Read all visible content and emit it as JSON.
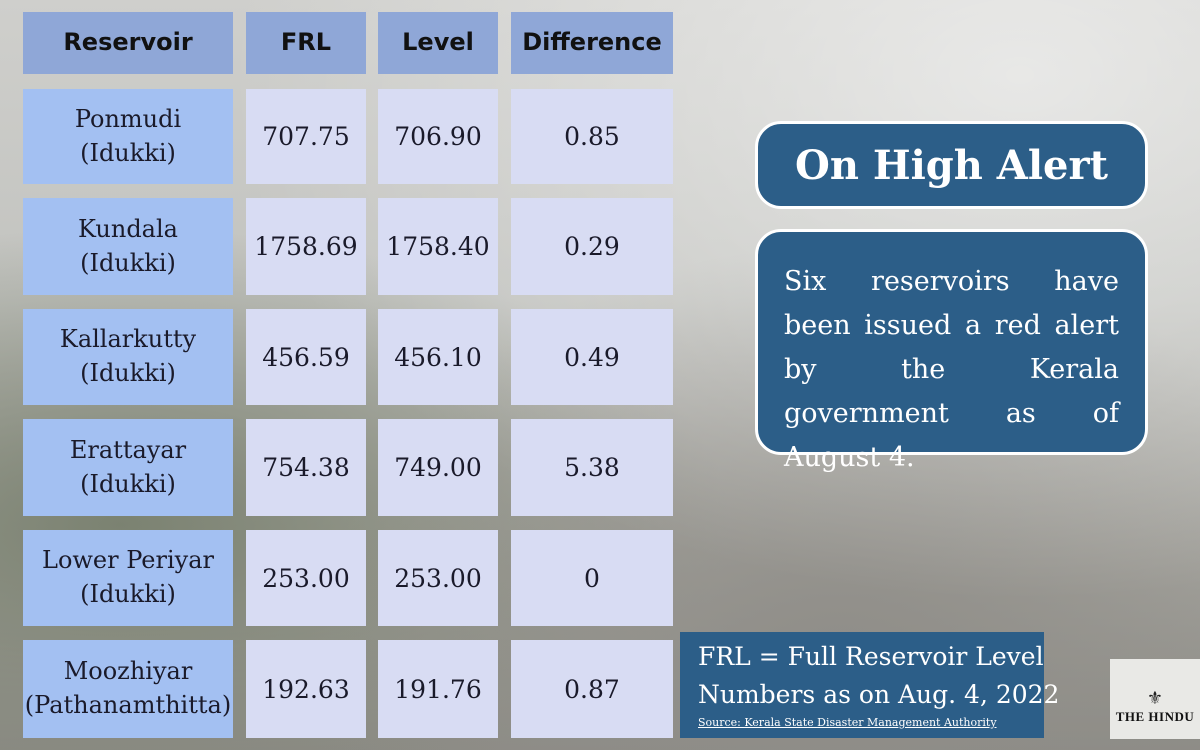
{
  "table": {
    "headers": [
      "Reservoir",
      "FRL",
      "Level",
      "Difference"
    ],
    "rows": [
      {
        "name": "Ponmudi",
        "district": "(Idukki)",
        "frl": "707.75",
        "level": "706.90",
        "difference": "0.85"
      },
      {
        "name": "Kundala",
        "district": "(Idukki)",
        "frl": "1758.69",
        "level": "1758.40",
        "difference": "0.29"
      },
      {
        "name": "Kallarkutty",
        "district": "(Idukki)",
        "frl": "456.59",
        "level": "456.10",
        "difference": "0.49"
      },
      {
        "name": "Erattayar",
        "district": "(Idukki)",
        "frl": "754.38",
        "level": "749.00",
        "difference": "5.38"
      },
      {
        "name": "Lower Periyar",
        "district": "(Idukki)",
        "frl": "253.00",
        "level": "253.00",
        "difference": "0"
      },
      {
        "name": "Moozhiyar",
        "district": "(Pathanamthitta)",
        "frl": "192.63",
        "level": "191.76",
        "difference": "0.87"
      }
    ]
  },
  "alert": {
    "title": "On High Alert",
    "body": "Six reservoirs have been issued a red alert by the Kerala government as of August 4."
  },
  "note": {
    "line1": "FRL = Full Reservoir Level",
    "line2": "Numbers as on Aug. 4, 2022",
    "source": "Source: Kerala State Disaster Management Authority"
  },
  "logo": {
    "text": "THE HINDU",
    "icon": "newspaper-crest-icon"
  },
  "colors": {
    "header": "#8fa7d7",
    "name_cell": "#a3c0f2",
    "value_cell": "#d8dcf3",
    "panel": "#2c5e88"
  }
}
